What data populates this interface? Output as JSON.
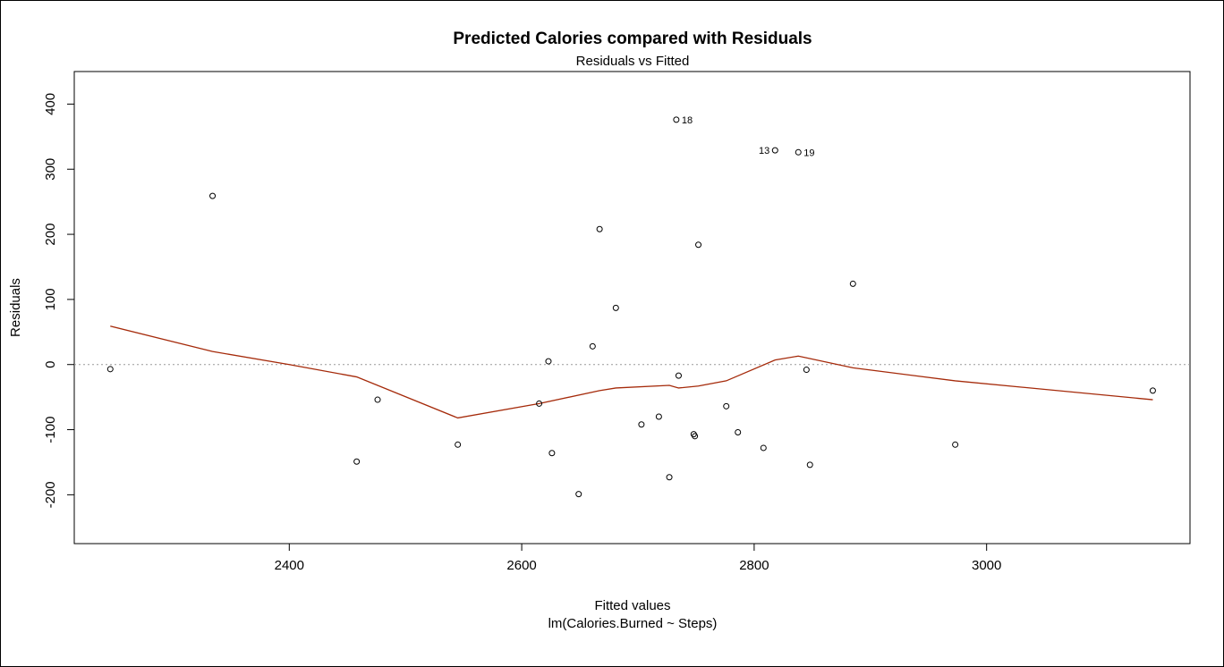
{
  "chart_data": {
    "type": "scatter",
    "title": "Predicted Calories compared with Residuals",
    "subtitle": "Residuals vs Fitted",
    "xlabel": "Fitted values",
    "xsublabel": "lm(Calories.Burned ~ Steps)",
    "ylabel": "Residuals",
    "xlim": [
      2215,
      3175
    ],
    "ylim": [
      -275,
      450
    ],
    "x_ticks": [
      2400,
      2600,
      2800,
      3000
    ],
    "y_ticks": [
      -200,
      -100,
      0,
      100,
      200,
      300,
      400
    ],
    "reference_line_y": 0,
    "points": [
      {
        "x": 2246,
        "y": -7
      },
      {
        "x": 2334,
        "y": 259
      },
      {
        "x": 2458,
        "y": -149
      },
      {
        "x": 2476,
        "y": -54
      },
      {
        "x": 2545,
        "y": -123
      },
      {
        "x": 2615,
        "y": -60
      },
      {
        "x": 2623,
        "y": 5
      },
      {
        "x": 2626,
        "y": -136
      },
      {
        "x": 2649,
        "y": -199
      },
      {
        "x": 2661,
        "y": 28
      },
      {
        "x": 2667,
        "y": 208
      },
      {
        "x": 2681,
        "y": 87
      },
      {
        "x": 2703,
        "y": -92
      },
      {
        "x": 2718,
        "y": -80
      },
      {
        "x": 2727,
        "y": -173
      },
      {
        "x": 2733,
        "y": 376,
        "label": "18"
      },
      {
        "x": 2735,
        "y": -17
      },
      {
        "x": 2748,
        "y": -107
      },
      {
        "x": 2749,
        "y": -110
      },
      {
        "x": 2752,
        "y": 184
      },
      {
        "x": 2776,
        "y": -64
      },
      {
        "x": 2786,
        "y": -104
      },
      {
        "x": 2808,
        "y": -128
      },
      {
        "x": 2818,
        "y": 329,
        "label": "13"
      },
      {
        "x": 2838,
        "y": 326,
        "label": "19"
      },
      {
        "x": 2845,
        "y": -8
      },
      {
        "x": 2848,
        "y": -154
      },
      {
        "x": 2885,
        "y": 124
      },
      {
        "x": 2973,
        "y": -123
      },
      {
        "x": 3143,
        "y": -40
      }
    ],
    "smooth_line": {
      "color": "#a52a0a",
      "points": [
        [
          2246,
          59
        ],
        [
          2334,
          20
        ],
        [
          2400,
          0
        ],
        [
          2458,
          -19
        ],
        [
          2545,
          -82
        ],
        [
          2615,
          -60
        ],
        [
          2667,
          -40
        ],
        [
          2681,
          -36
        ],
        [
          2727,
          -32
        ],
        [
          2735,
          -36
        ],
        [
          2752,
          -33
        ],
        [
          2776,
          -25
        ],
        [
          2818,
          7
        ],
        [
          2838,
          13
        ],
        [
          2885,
          -5
        ],
        [
          2973,
          -25
        ],
        [
          3143,
          -54
        ]
      ]
    },
    "grid": false
  }
}
